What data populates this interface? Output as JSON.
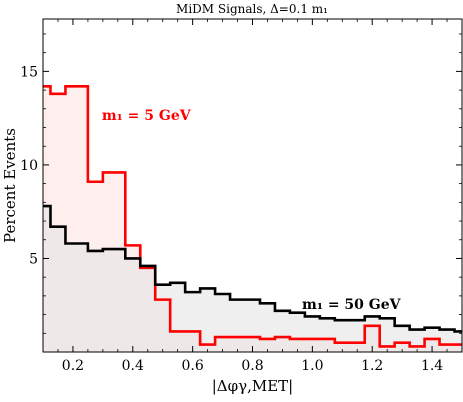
{
  "chart_data": {
    "type": "line",
    "title": "MiDM Signals, Δ=0.1 m₁",
    "xlabel": "|Δφγ,MET|",
    "ylabel": "Percent Events",
    "xlim": [
      0.1,
      1.5
    ],
    "ylim": [
      0,
      17.8
    ],
    "x_ticks": [
      0.2,
      0.4,
      0.6,
      0.8,
      1.0,
      1.2,
      1.4
    ],
    "x_tick_labels": [
      "0.2",
      "0.4",
      "0.6",
      "0.8",
      "1.0",
      "1.2",
      "1.4"
    ],
    "y_ticks": [
      5,
      10,
      15
    ],
    "y_tick_labels": [
      "5",
      "10",
      "15"
    ],
    "grid": false,
    "histogram": true,
    "bin_edges": [
      0.1,
      0.125,
      0.175,
      0.25,
      0.3,
      0.375,
      0.425,
      0.475,
      0.525,
      0.575,
      0.625,
      0.675,
      0.725,
      0.775,
      0.825,
      0.875,
      0.925,
      0.975,
      1.025,
      1.075,
      1.125,
      1.175,
      1.225,
      1.275,
      1.325,
      1.375,
      1.425,
      1.475,
      1.5
    ],
    "series": [
      {
        "color": "#ff0000",
        "fill": "#ffe2e2",
        "values": [
          14.2,
          13.8,
          14.2,
          9.1,
          9.6,
          5.7,
          4.5,
          2.8,
          1.1,
          1.1,
          0.4,
          0.8,
          0.8,
          0.8,
          0.7,
          0.8,
          0.7,
          0.7,
          0.7,
          0.5,
          0.5,
          1.4,
          0.3,
          0.5,
          0.3,
          0.7,
          0.4,
          0.4
        ]
      },
      {
        "color": "#000000",
        "fill": "#e5e5e5",
        "values": [
          7.8,
          6.7,
          5.8,
          5.4,
          5.5,
          5.0,
          4.6,
          3.6,
          3.7,
          3.2,
          3.4,
          3.1,
          2.8,
          2.8,
          2.6,
          2.2,
          2.1,
          1.9,
          1.8,
          1.7,
          1.7,
          1.9,
          1.8,
          1.4,
          1.2,
          1.3,
          1.2,
          1.1
        ]
      }
    ],
    "annotations": [
      {
        "text": "m₁ = 5 GeV",
        "color": "#ff0000",
        "x": 0.445,
        "y": 12.4
      },
      {
        "text": "m₁ = 50 GeV",
        "color": "#000000",
        "x": 1.13,
        "y": 2.3
      }
    ]
  }
}
